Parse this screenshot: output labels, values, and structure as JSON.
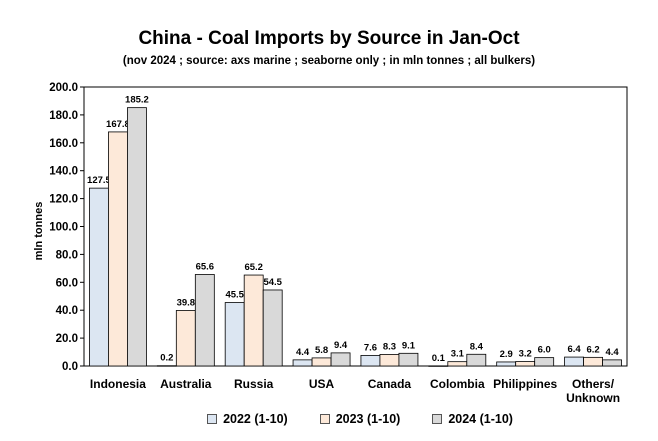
{
  "chart_data": {
    "type": "bar",
    "title": "China - Coal Imports by Source in Jan-Oct",
    "subtitle": "(nov 2024 ; source: axs marine ; seaborne only ; in mln tonnes ; all bulkers)",
    "ylabel": "mln tonnes",
    "xlabel": "",
    "ylim": [
      0,
      200
    ],
    "yticks": [
      "0.0",
      "20.0",
      "40.0",
      "60.0",
      "80.0",
      "100.0",
      "120.0",
      "140.0",
      "160.0",
      "180.0",
      "200.0"
    ],
    "categories": [
      "Indonesia",
      "Australia",
      "Russia",
      "USA",
      "Canada",
      "Colombia",
      "Philippines",
      "Others/ Unknown"
    ],
    "series": [
      {
        "name": "2022 (1-10)",
        "color": "#dce6f2",
        "values": [
          127.5,
          0.2,
          45.5,
          4.4,
          7.6,
          0.1,
          2.9,
          6.4
        ],
        "labels": [
          "127.5",
          "0.2",
          "45.5",
          "4.4",
          "7.6",
          "0.1",
          "2.9",
          "6.4"
        ]
      },
      {
        "name": "2023 (1-10)",
        "color": "#fde9d9",
        "values": [
          167.8,
          39.8,
          65.2,
          5.8,
          8.3,
          3.1,
          3.2,
          6.2
        ],
        "labels": [
          "167.8",
          "39.8",
          "65.2",
          "5.8",
          "8.3",
          "3.1",
          "3.2",
          "6.2"
        ]
      },
      {
        "name": "2024 (1-10)",
        "color": "#d9d9d9",
        "values": [
          185.2,
          65.6,
          54.5,
          9.4,
          9.1,
          8.4,
          6.0,
          4.4
        ],
        "labels": [
          "185.2",
          "65.6",
          "54.5",
          "9.4",
          "9.1",
          "8.4",
          "6.0",
          "4.4"
        ]
      }
    ],
    "grid": false,
    "legend_position": "bottom"
  }
}
